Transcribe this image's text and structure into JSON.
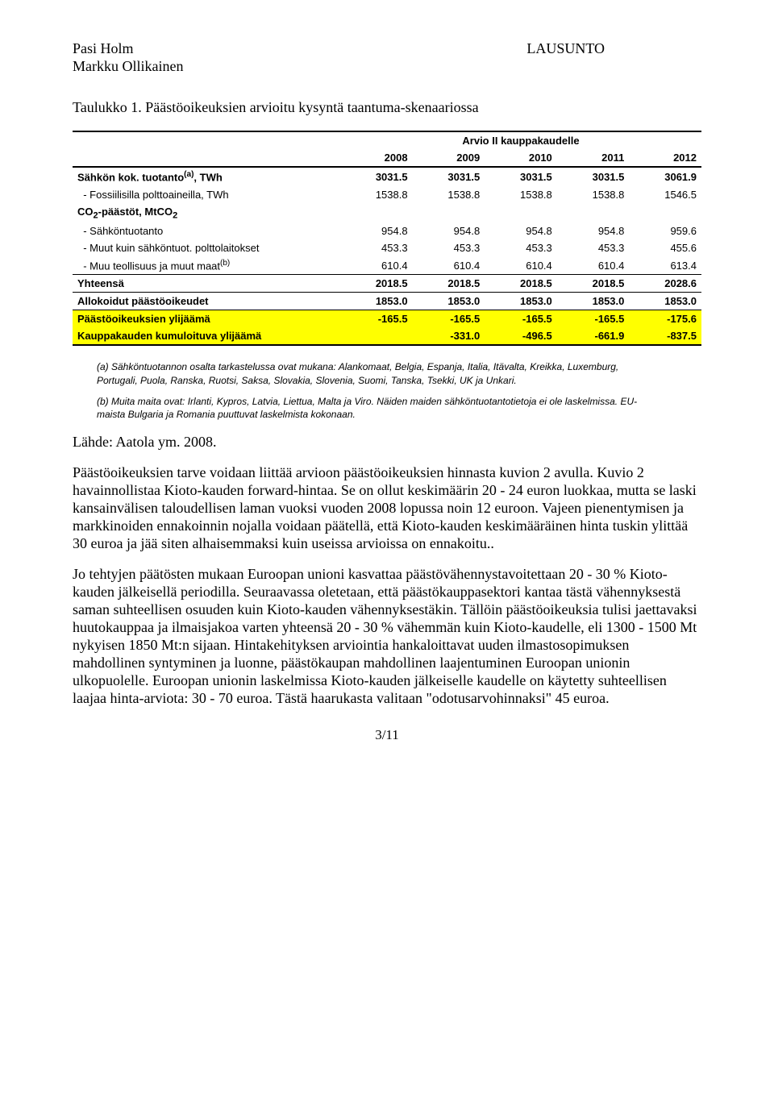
{
  "header": {
    "author1": "Pasi Holm",
    "author2": "Markku Ollikainen",
    "doctype": "LAUSUNTO"
  },
  "caption": "Taulukko 1. Päästöoikeuksien arvioitu kysyntä taantuma-skenaariossa",
  "table": {
    "spanhead": "Arvio II kauppakaudelle",
    "years": [
      "2008",
      "2009",
      "2010",
      "2011",
      "2012"
    ],
    "rows": [
      {
        "label_html": "Sähkön kok. tuotanto<span class='sup'>(a)</span>, TWh",
        "vals": [
          "3031.5",
          "3031.5",
          "3031.5",
          "3031.5",
          "3061.9"
        ],
        "bold": true
      },
      {
        "label_html": "&nbsp;&nbsp;- Fossiilisilla polttoaineilla, TWh",
        "vals": [
          "1538.8",
          "1538.8",
          "1538.8",
          "1538.8",
          "1546.5"
        ]
      },
      {
        "label_html": "CO<span class='sub'>2</span>-päästöt, MtCO<span class='sub'>2</span>",
        "vals": [
          "",
          "",
          "",
          "",
          ""
        ],
        "bold": true
      },
      {
        "label_html": "&nbsp;&nbsp;- Sähköntuotanto",
        "vals": [
          "954.8",
          "954.8",
          "954.8",
          "954.8",
          "959.6"
        ]
      },
      {
        "label_html": "&nbsp;&nbsp;- Muut kuin sähköntuot. polttolaitokset",
        "vals": [
          "453.3",
          "453.3",
          "453.3",
          "453.3",
          "455.6"
        ]
      },
      {
        "label_html": "&nbsp;&nbsp;- Muu teollisuus ja muut maat<span class='sup'>(b)</span>",
        "vals": [
          "610.4",
          "610.4",
          "610.4",
          "610.4",
          "613.4"
        ]
      },
      {
        "label_html": "Yhteensä",
        "vals": [
          "2018.5",
          "2018.5",
          "2018.5",
          "2018.5",
          "2028.6"
        ],
        "bold": true,
        "topline": true
      },
      {
        "label_html": "Allokoidut päästöoikeudet",
        "vals": [
          "1853.0",
          "1853.0",
          "1853.0",
          "1853.0",
          "1853.0"
        ],
        "bold": true,
        "topline": true
      },
      {
        "label_html": "Päästöoikeuksien ylijäämä",
        "vals": [
          "-165.5",
          "-165.5",
          "-165.5",
          "-165.5",
          "-175.6"
        ],
        "bold": true,
        "yellow": true,
        "topline": true
      },
      {
        "label_html": "Kauppakauden kumuloituva ylijäämä",
        "vals": [
          "",
          "-331.0",
          "-496.5",
          "-661.9",
          "-837.5"
        ],
        "bold": true,
        "yellow": true,
        "bottomline": true
      }
    ],
    "colors": {
      "highlight": "#ffff00",
      "border": "#000000"
    }
  },
  "notes": {
    "a": "(a) Sähköntuotannon osalta tarkastelussa ovat mukana: Alankomaat, Belgia, Espanja, Italia, Itävalta, Kreikka, Luxemburg, Portugali, Puola, Ranska, Ruotsi, Saksa, Slovakia, Slovenia, Suomi, Tanska, Tsekki, UK ja Unkari.",
    "b": "(b) Muita maita ovat: Irlanti, Kypros, Latvia, Liettua, Malta ja Viro. Näiden maiden sähköntuotantotietoja ei ole laskelmissa. EU-maista Bulgaria ja Romania puuttuvat laskelmista kokonaan."
  },
  "source": "Lähde: Aatola ym. 2008.",
  "para1": "Päästöoikeuksien tarve voidaan liittää arvioon päästöoikeuksien hinnasta kuvion 2 avulla. Kuvio 2 havainnollistaa Kioto-kauden forward-hintaa. Se on ollut keskimäärin 20 - 24 euron luokkaa, mutta se laski kansainvälisen taloudellisen laman vuoksi vuoden 2008 lopussa noin 12 euroon. Vajeen pienentymisen ja markkinoiden ennakoinnin nojalla voidaan päätellä, että Kioto-kauden keskimääräinen hinta tuskin ylittää 30 euroa ja jää siten alhaisemmaksi kuin useissa arvioissa on ennakoitu..",
  "para2": "Jo tehtyjen päätösten mukaan Euroopan unioni kasvattaa päästövähennystavoitettaan 20 - 30 % Kioto-kauden jälkeisellä periodilla. Seuraavassa oletetaan, että päästökauppasektori kantaa tästä vähennyksestä saman suhteellisen osuuden kuin Kioto-kauden vähennyksestäkin. Tällöin päästöoikeuksia tulisi jaettavaksi huutokauppaa ja ilmaisjakoa varten yhteensä 20 - 30 % vähemmän kuin Kioto-kaudelle, eli 1300 - 1500 Mt nykyisen 1850 Mt:n sijaan. Hintakehityksen arviointia hankaloittavat uuden ilmastosopimuksen mahdollinen syntyminen ja luonne, päästökaupan mahdollinen laajentuminen Euroopan unionin ulkopuolelle. Euroopan unionin laskelmissa Kioto-kauden jälkeiselle kaudelle on käytetty suhteellisen laajaa hinta-arviota: 30 - 70 euroa. Tästä haarukasta valitaan \"odotusarvohinnaksi\" 45 euroa.",
  "pagenum": "3/11"
}
